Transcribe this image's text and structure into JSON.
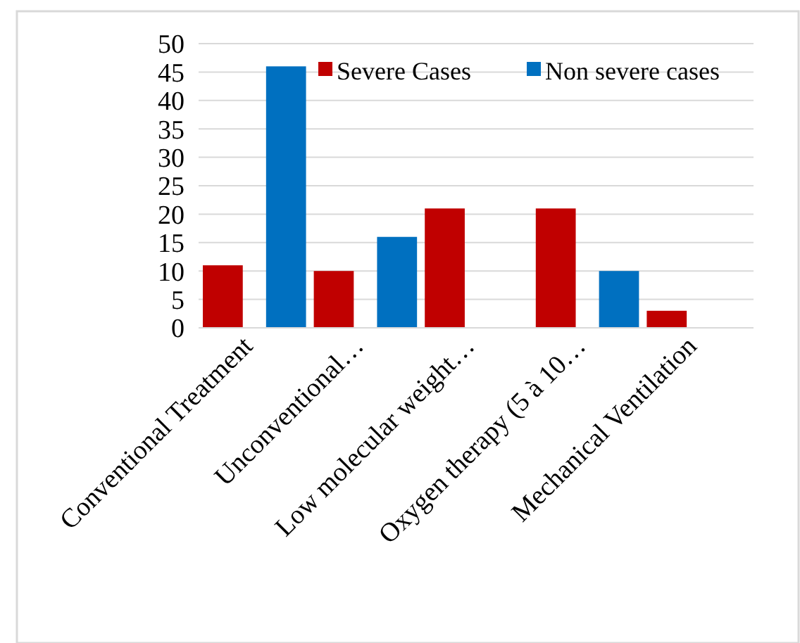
{
  "chart_data": {
    "type": "bar",
    "categories": [
      "Conventional Treatment",
      "Unconventional…",
      "Low molecular  weight…",
      "Oxygen therapy (5 à 10…",
      "Mechanical Ventilation"
    ],
    "series": [
      {
        "name": "Severe Cases",
        "color": "#c00000",
        "values": [
          11,
          10,
          21,
          21,
          3
        ]
      },
      {
        "name": "Non severe cases",
        "color": "#0070c0",
        "values": [
          46,
          16,
          0,
          10,
          0
        ]
      }
    ],
    "ylim": [
      0,
      50
    ],
    "yticks": [
      0,
      5,
      10,
      15,
      20,
      25,
      30,
      35,
      40,
      45,
      50
    ],
    "grid": "y",
    "legend": "top right"
  }
}
